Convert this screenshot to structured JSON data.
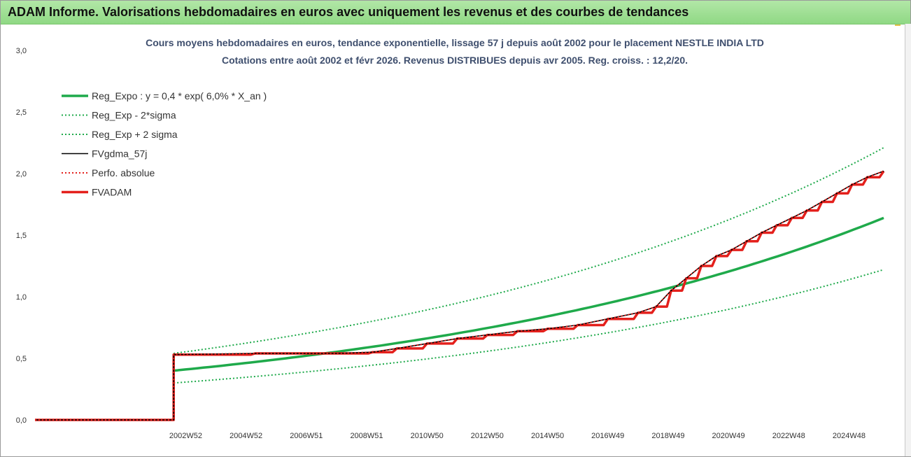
{
  "header": {
    "title": "ADAM Informe. Valorisations hebdomadaires en euros avec uniquement les revenus et des courbes de tendances"
  },
  "chart_data": {
    "type": "line",
    "title_lines": [
      "Cours moyens hebdomadaires en euros, tendance exponentielle, lissage 57 j depuis août 2002 pour le placement NESTLE INDIA LTD",
      "Cotations entre août 2002 et févr 2026. Revenus DISTRIBUES depuis avr 2005. Reg. croiss. : 12,2/20."
    ],
    "ylim": [
      0,
      3
    ],
    "y_ticks": [
      "0,0",
      "0,5",
      "1,0",
      "1,5",
      "2,0",
      "2,5",
      "3,0"
    ],
    "x_range": [
      1998.0,
      2026.15
    ],
    "x_tick_labels": [
      "2002W52",
      "2004W52",
      "2006W51",
      "2008W51",
      "2010W50",
      "2012W50",
      "2014W50",
      "2016W49",
      "2018W49",
      "2020W49",
      "2022W48",
      "2024W48"
    ],
    "x_tick_years": [
      2003,
      2005,
      2007,
      2009,
      2011,
      2013,
      2015,
      2017,
      2019,
      2021,
      2023,
      2025
    ],
    "legend_position": "top-left",
    "series": [
      {
        "name": "Reg_Expo : y = 0,4 * exp( 6,0% *  X_an )",
        "color": "#1faa4b",
        "style": "solid-thick",
        "x": [
          2002.6,
          2026.15
        ],
        "y": [
          0.4,
          1.64
        ]
      },
      {
        "name": "Reg_Exp - 2*sigma",
        "color": "#1faa4b",
        "style": "dotted",
        "x": [
          2002.6,
          2026.15
        ],
        "y": [
          0.3,
          1.22
        ]
      },
      {
        "name": "Reg_Exp + 2 sigma",
        "color": "#1faa4b",
        "style": "dotted",
        "x": [
          2002.6,
          2026.15
        ],
        "y": [
          0.54,
          2.21
        ]
      },
      {
        "name": "FVgdma_57j",
        "color": "#000000",
        "style": "solid",
        "x": [
          1998.0,
          2002.6,
          2002.6,
          2005.3,
          2008.0,
          2009.2,
          2010.0,
          2011.0,
          2012.0,
          2013.0,
          2014.0,
          2015.0,
          2016.0,
          2017.0,
          2018.0,
          2018.6,
          2019.1,
          2019.6,
          2020.1,
          2020.6,
          2021.1,
          2021.6,
          2022.1,
          2022.6,
          2023.1,
          2023.6,
          2024.1,
          2024.6,
          2025.1,
          2025.6,
          2026.15
        ],
        "y": [
          0.0,
          0.0,
          0.53,
          0.54,
          0.54,
          0.55,
          0.58,
          0.62,
          0.66,
          0.69,
          0.72,
          0.74,
          0.77,
          0.82,
          0.87,
          0.92,
          1.05,
          1.15,
          1.25,
          1.33,
          1.38,
          1.45,
          1.52,
          1.58,
          1.64,
          1.7,
          1.77,
          1.84,
          1.91,
          1.97,
          2.02
        ]
      },
      {
        "name": "Perfo. absolue",
        "color": "#e4201c",
        "style": "dotted",
        "x": [
          1998.0,
          2002.6,
          2002.6,
          2005.3,
          2008.0,
          2009.2,
          2010.0,
          2011.0,
          2012.0,
          2013.0,
          2014.0,
          2015.0,
          2016.0,
          2017.0,
          2018.0,
          2018.6,
          2019.1,
          2019.6,
          2020.1,
          2020.6,
          2021.1,
          2021.6,
          2022.1,
          2022.6,
          2023.1,
          2023.6,
          2024.1,
          2024.6,
          2025.1,
          2025.6,
          2026.15
        ],
        "y": [
          0.0,
          0.0,
          0.53,
          0.54,
          0.54,
          0.55,
          0.58,
          0.62,
          0.66,
          0.69,
          0.72,
          0.74,
          0.77,
          0.82,
          0.87,
          0.92,
          1.05,
          1.15,
          1.25,
          1.33,
          1.38,
          1.45,
          1.52,
          1.58,
          1.64,
          1.7,
          1.77,
          1.84,
          1.91,
          1.97,
          2.02
        ]
      },
      {
        "name": "FVADAM",
        "color": "#e4201c",
        "style": "solid-thick",
        "x": [
          1998.0,
          2002.6,
          2002.6,
          2005.3,
          2008.0,
          2009.2,
          2010.0,
          2011.0,
          2012.0,
          2013.0,
          2014.0,
          2015.0,
          2016.0,
          2017.0,
          2018.0,
          2018.6,
          2019.1,
          2019.6,
          2020.1,
          2020.6,
          2021.1,
          2021.6,
          2022.1,
          2022.6,
          2023.1,
          2023.6,
          2024.1,
          2024.6,
          2025.1,
          2025.6,
          2026.15
        ],
        "y": [
          0.0,
          0.0,
          0.53,
          0.54,
          0.54,
          0.55,
          0.58,
          0.62,
          0.66,
          0.69,
          0.72,
          0.74,
          0.77,
          0.82,
          0.87,
          0.92,
          1.05,
          1.15,
          1.25,
          1.33,
          1.38,
          1.45,
          1.52,
          1.58,
          1.64,
          1.7,
          1.77,
          1.84,
          1.91,
          1.97,
          2.02
        ]
      }
    ]
  }
}
